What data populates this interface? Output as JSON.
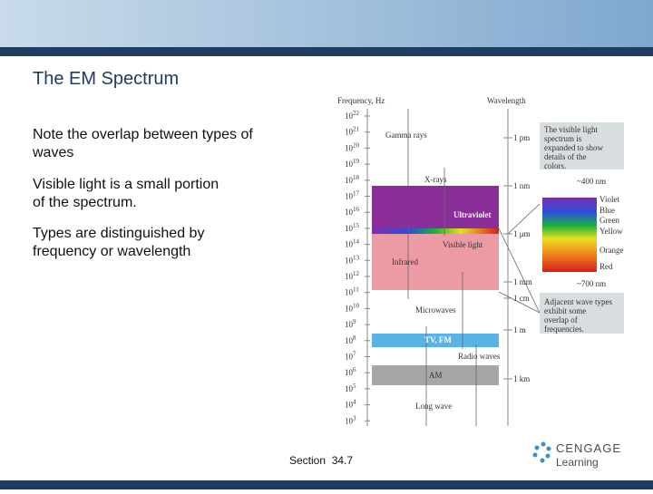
{
  "slide": {
    "title": "The EM Spectrum",
    "bullets": [
      "Note the overlap between types of waves",
      "Visible light is a small portion of the spectrum.",
      "Types are distinguished by frequency or wavelength"
    ],
    "footer": "Section  34.7",
    "logo": {
      "name": "CENGAGE",
      "sub": "Learning"
    }
  },
  "diagram": {
    "frequency_label": "Frequency, Hz",
    "wavelength_label": "Wavelength",
    "frequency_base": "10",
    "frequency_exponents": [
      "22",
      "21",
      "20",
      "19",
      "18",
      "17",
      "16",
      "15",
      "14",
      "13",
      "12",
      "11",
      "10",
      "9",
      "8",
      "7",
      "6",
      "5",
      "4",
      "3"
    ],
    "wavelengths": [
      "1 pm",
      "1 nm",
      "1 μm",
      "1 mm",
      "1 cm",
      "1 m",
      "1 km"
    ],
    "bands": [
      "Gamma rays",
      "X-rays",
      "Ultraviolet",
      "Visible light",
      "Infrared",
      "Microwaves",
      "TV, FM",
      "Radio waves",
      "AM",
      "Long wave"
    ],
    "visible_note": "The visible light spectrum is expanded to show details of the colors.",
    "nm400": "~400 nm",
    "nm700": "~700 nm",
    "colors": [
      "Violet",
      "Blue",
      "Green",
      "Yellow",
      "Orange",
      "Red"
    ],
    "overlap_note": "Adjacent wave types exhibit some overlap of frequencies."
  }
}
